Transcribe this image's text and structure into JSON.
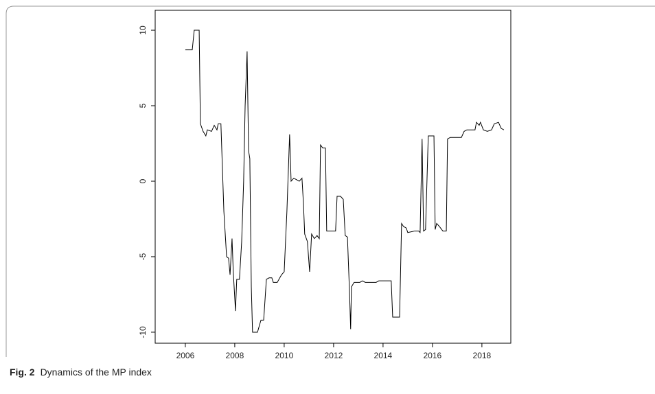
{
  "figure_label": "Fig. 2",
  "caption": "Dynamics of the MP index",
  "chart_data": {
    "type": "line",
    "color": "#000000",
    "xlim": [
      2004.78,
      2019.17
    ],
    "xticks": [
      2006,
      2008,
      2010,
      2012,
      2014,
      2016,
      2018
    ],
    "ylim": [
      -10.73,
      11.32
    ],
    "yticks": [
      -10,
      -5,
      0,
      5,
      10
    ],
    "x": [
      2006.0,
      2006.28,
      2006.36,
      2006.56,
      2006.61,
      2006.72,
      2006.83,
      2006.89,
      2007.06,
      2007.17,
      2007.28,
      2007.33,
      2007.44,
      2007.56,
      2007.67,
      2007.75,
      2007.81,
      2007.89,
      2007.94,
      2008.03,
      2008.08,
      2008.19,
      2008.28,
      2008.36,
      2008.42,
      2008.5,
      2008.56,
      2008.61,
      2008.67,
      2008.72,
      2008.92,
      2009.06,
      2009.17,
      2009.28,
      2009.39,
      2009.5,
      2009.56,
      2009.72,
      2009.89,
      2010.0,
      2010.11,
      2010.22,
      2010.28,
      2010.39,
      2010.5,
      2010.61,
      2010.72,
      2010.78,
      2010.83,
      2010.94,
      2011.03,
      2011.11,
      2011.22,
      2011.33,
      2011.42,
      2011.47,
      2011.56,
      2011.67,
      2011.72,
      2011.83,
      2012.08,
      2012.14,
      2012.28,
      2012.39,
      2012.47,
      2012.56,
      2012.64,
      2012.69,
      2012.72,
      2012.83,
      2013.06,
      2013.17,
      2013.28,
      2013.72,
      2013.83,
      2014.33,
      2014.39,
      2014.67,
      2014.75,
      2014.83,
      2014.94,
      2015.0,
      2015.28,
      2015.44,
      2015.5,
      2015.58,
      2015.64,
      2015.72,
      2015.83,
      2016.06,
      2016.11,
      2016.17,
      2016.28,
      2016.42,
      2016.56,
      2016.61,
      2016.72,
      2017.17,
      2017.28,
      2017.39,
      2017.72,
      2017.78,
      2017.89,
      2017.94,
      2018.06,
      2018.22,
      2018.39,
      2018.5,
      2018.67,
      2018.78,
      2018.89
    ],
    "values": [
      8.7,
      8.7,
      10.0,
      10.0,
      3.8,
      3.3,
      3.0,
      3.4,
      3.3,
      3.7,
      3.4,
      3.8,
      3.8,
      -2.0,
      -5.0,
      -5.1,
      -6.2,
      -3.8,
      -6.0,
      -8.6,
      -6.5,
      -6.5,
      -4.0,
      0.0,
      5.0,
      8.6,
      2.0,
      1.5,
      -7.0,
      -10.0,
      -10.0,
      -9.2,
      -9.2,
      -6.5,
      -6.4,
      -6.4,
      -6.7,
      -6.7,
      -6.2,
      -6.0,
      -2.0,
      3.1,
      0.0,
      0.2,
      0.1,
      0.0,
      0.2,
      -1.5,
      -3.5,
      -4.0,
      -6.0,
      -3.5,
      -3.8,
      -3.6,
      -3.8,
      2.4,
      2.2,
      2.2,
      -3.3,
      -3.3,
      -3.3,
      -1.0,
      -1.0,
      -1.2,
      -3.6,
      -3.7,
      -7.2,
      -9.8,
      -7.0,
      -6.7,
      -6.7,
      -6.6,
      -6.7,
      -6.7,
      -6.6,
      -6.6,
      -9.0,
      -9.0,
      -2.8,
      -3.0,
      -3.1,
      -3.4,
      -3.3,
      -3.3,
      -3.4,
      2.8,
      -3.3,
      -3.2,
      3.0,
      3.0,
      -3.2,
      -2.8,
      -3.0,
      -3.3,
      -3.3,
      2.8,
      2.9,
      2.9,
      3.3,
      3.4,
      3.4,
      3.9,
      3.7,
      3.9,
      3.4,
      3.3,
      3.4,
      3.8,
      3.9,
      3.5,
      3.4
    ]
  }
}
